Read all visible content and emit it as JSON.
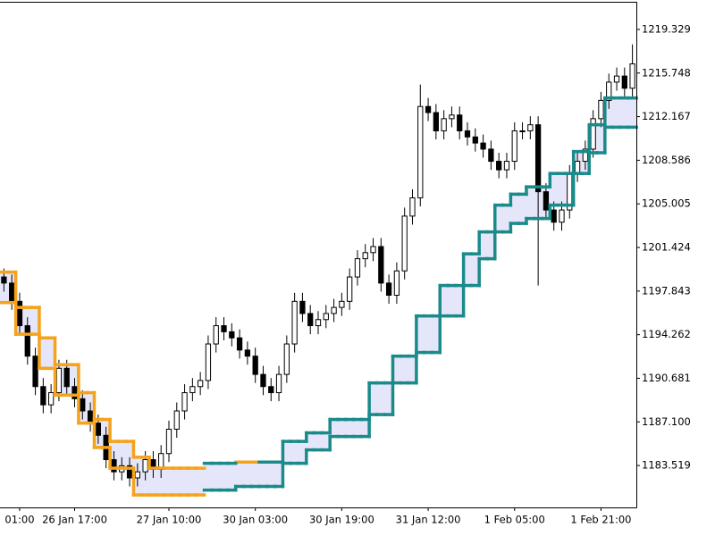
{
  "chart_data": {
    "type": "candlestick",
    "categories": [
      null,
      null,
      "01:00",
      null,
      null,
      null,
      null,
      null,
      null,
      "26 Jan 17:00",
      null,
      null,
      null,
      null,
      null,
      null,
      null,
      null,
      null,
      null,
      null,
      "27 Jan 10:00",
      null,
      null,
      null,
      null,
      null,
      null,
      null,
      null,
      null,
      null,
      "30 Jan 03:00",
      null,
      null,
      null,
      null,
      null,
      null,
      null,
      null,
      null,
      null,
      "30 Jan 19:00",
      null,
      null,
      null,
      null,
      null,
      null,
      null,
      null,
      null,
      null,
      "31 Jan 12:00",
      null,
      null,
      null,
      null,
      null,
      null,
      null,
      null,
      null,
      null,
      "1 Feb 05:00",
      null,
      null,
      null,
      null,
      null,
      null,
      null,
      null,
      null,
      null,
      "1 Feb 21:00",
      null,
      null,
      null,
      null
    ],
    "open": [
      1199,
      1198.5,
      1197,
      1195,
      1192.5,
      1190,
      1188.5,
      1189.5,
      1191.5,
      1190,
      1189,
      1188,
      1187,
      1186,
      1184,
      1183,
      1183.5,
      1182.5,
      1183,
      1184,
      1183.2,
      1184.5,
      1186.5,
      1188,
      1189.5,
      1190,
      1190.5,
      1193.5,
      1195,
      1194.5,
      1194,
      1193,
      1192.5,
      1191,
      1190,
      1189.5,
      1191,
      1193.5,
      1197,
      1196,
      1195,
      1195.5,
      1196,
      1196.5,
      1197,
      1199,
      1200.5,
      1201,
      1201.5,
      1198.5,
      1197.5,
      1199.5,
      1204,
      1205.5,
      1213,
      1212.5,
      1211,
      1212,
      1212.3,
      1211,
      1210.5,
      1210,
      1209.5,
      1208.5,
      1207.8,
      1208.5,
      1211,
      1211,
      1211.5,
      1206,
      1204.5,
      1203.5,
      1204.5,
      1207.5,
      1208.5,
      1209.5,
      1212,
      1213.5,
      1215,
      1215.5,
      1214.5
    ],
    "high": [
      1199.7,
      1199.2,
      1197.7,
      1195.7,
      1193.2,
      1190.7,
      1190.2,
      1192.2,
      1192.2,
      1190.7,
      1189.7,
      1188.7,
      1187.7,
      1186.7,
      1184.7,
      1184.2,
      1184.2,
      1183.7,
      1184.7,
      1184.7,
      1185.2,
      1187.2,
      1188.7,
      1190.2,
      1190.7,
      1191.2,
      1194.2,
      1195.7,
      1195.7,
      1195.2,
      1194.7,
      1193.7,
      1193.2,
      1191.7,
      1190.7,
      1191.7,
      1194.2,
      1197.7,
      1197.7,
      1196.7,
      1196.2,
      1196.7,
      1197.2,
      1197.7,
      1199.7,
      1201.2,
      1201.7,
      1202.2,
      1202.2,
      1199.2,
      1200.2,
      1204.7,
      1206.2,
      1214.8,
      1213.7,
      1213.2,
      1212.7,
      1213,
      1213,
      1211.7,
      1211.2,
      1210.7,
      1210.2,
      1209.2,
      1209.2,
      1211.7,
      1211.7,
      1212.2,
      1212.2,
      1206.7,
      1205.2,
      1205.2,
      1208.2,
      1209.2,
      1210.2,
      1212.7,
      1214.2,
      1215.7,
      1216.2,
      1216.2,
      1218.1
    ],
    "low": [
      1197.8,
      1196.3,
      1194.3,
      1191.8,
      1189.3,
      1187.8,
      1187.8,
      1188.8,
      1189.3,
      1188.3,
      1187.3,
      1186.3,
      1185.3,
      1183.3,
      1182.3,
      1182.3,
      1181.8,
      1181.8,
      1182.3,
      1182.5,
      1182.5,
      1183.8,
      1185.8,
      1187.3,
      1188.8,
      1189.3,
      1189.8,
      1192.8,
      1193.8,
      1193.3,
      1192.3,
      1191.8,
      1190.3,
      1189.3,
      1188.8,
      1188.8,
      1190.3,
      1192.8,
      1195.3,
      1194.3,
      1194.3,
      1194.8,
      1195.3,
      1195.8,
      1196.3,
      1198.3,
      1199.8,
      1200.3,
      1197.8,
      1196.8,
      1196.8,
      1198.8,
      1203.3,
      1204.8,
      1211.8,
      1210.3,
      1210.3,
      1211.3,
      1210.3,
      1209.8,
      1209.3,
      1208.8,
      1207.8,
      1207.1,
      1207.1,
      1207.8,
      1210.3,
      1210.3,
      1198.3,
      1203.8,
      1202.8,
      1202.8,
      1203.8,
      1206.8,
      1207.8,
      1208.8,
      1211.3,
      1212.8,
      1214.3,
      1213.8,
      1213.8
    ],
    "close": [
      1198.5,
      1197,
      1195,
      1192.5,
      1190,
      1188.5,
      1189.5,
      1191.5,
      1190,
      1189,
      1188,
      1187,
      1186,
      1184,
      1183,
      1183.5,
      1182.5,
      1183,
      1184,
      1183.2,
      1184.5,
      1186.5,
      1188,
      1189.5,
      1190,
      1190.5,
      1193.5,
      1195,
      1194.5,
      1194,
      1193,
      1192.5,
      1191,
      1190,
      1189.5,
      1191,
      1193.5,
      1197,
      1196,
      1195,
      1195.5,
      1196,
      1196.5,
      1197,
      1199,
      1200.5,
      1201,
      1201.5,
      1198.5,
      1197.5,
      1199.5,
      1204,
      1205.5,
      1213,
      1212.5,
      1211,
      1212,
      1212.3,
      1211,
      1210.5,
      1210,
      1209.5,
      1208.5,
      1207.8,
      1208.5,
      1211,
      1211,
      1211.5,
      1206,
      1204.5,
      1203.5,
      1204.5,
      1207.5,
      1208.5,
      1209.5,
      1212,
      1213.5,
      1215,
      1215.5,
      1214.5,
      1216.5
    ],
    "up_color": "#ffffff",
    "down_color": "#000000",
    "fill_color": "#e6e6fa",
    "series": [
      {
        "color": "#f5a21c",
        "values": [
          1199.4,
          1199.4,
          1196.5,
          1196.5,
          1196.5,
          1194.0,
          1194.0,
          1191.8,
          1191.8,
          1191.8,
          1189.5,
          1189.5,
          1187.3,
          1187.3,
          1185.5,
          1185.5,
          1185.5,
          1184.2,
          1184.2,
          1183.3,
          1183.3,
          1183.3,
          1183.3,
          1183.3,
          1183.3,
          1183.3,
          null,
          null,
          null,
          null,
          1183.8,
          1183.8,
          1183.8,
          null,
          null,
          null,
          null,
          null,
          null,
          null,
          null,
          null,
          null,
          null,
          null,
          null,
          null,
          null,
          null,
          null,
          null,
          null,
          null,
          null,
          null,
          null,
          null,
          null,
          null,
          null,
          null,
          null,
          null,
          null,
          null,
          null,
          null,
          null,
          null,
          null,
          null,
          null,
          null,
          null,
          null,
          null,
          null,
          null,
          null,
          null,
          null
        ]
      },
      {
        "color": "#f5a21c",
        "values": [
          1196.9,
          1196.9,
          1194.3,
          1194.3,
          1194.3,
          1191.5,
          1191.5,
          1189.3,
          1189.3,
          1189.3,
          1187.0,
          1187.0,
          1185.0,
          1185.0,
          1183.3,
          1183.3,
          1183.3,
          1181.1,
          1181.1,
          1181.1,
          1181.1,
          1181.1,
          1181.1,
          1181.1,
          1181.1,
          1181.1,
          null,
          null,
          null,
          null,
          null,
          null,
          null,
          null,
          null,
          null,
          null,
          null,
          null,
          null,
          null,
          null,
          null,
          null,
          null,
          null,
          null,
          null,
          null,
          null,
          null,
          null,
          null,
          null,
          null,
          null,
          null,
          null,
          null,
          null,
          null,
          null,
          null,
          null,
          null,
          null,
          null,
          null,
          null,
          null,
          null,
          null,
          null,
          null,
          null,
          null,
          null,
          null,
          null,
          null,
          null
        ]
      },
      {
        "color": "#1a8a8a",
        "values": [
          null,
          null,
          null,
          null,
          null,
          null,
          null,
          null,
          null,
          null,
          null,
          null,
          null,
          null,
          null,
          null,
          null,
          null,
          null,
          null,
          null,
          null,
          null,
          null,
          null,
          null,
          1183.7,
          1183.7,
          1183.7,
          1183.7,
          null,
          null,
          null,
          1183.8,
          1183.8,
          1183.8,
          1185.5,
          1185.5,
          1185.5,
          1186.2,
          1186.2,
          1186.2,
          1187.3,
          1187.3,
          1187.3,
          1187.3,
          1187.3,
          1190.3,
          1190.3,
          1190.3,
          1192.5,
          1192.5,
          1192.5,
          1195.8,
          1195.8,
          1195.8,
          1198.3,
          1198.3,
          1198.3,
          1200.9,
          1200.9,
          1202.7,
          1202.7,
          1204.9,
          1204.9,
          1205.8,
          1205.8,
          1206.4,
          1206.4,
          1206.4,
          1207.5,
          1207.5,
          1207.5,
          1209.3,
          1209.3,
          1211.5,
          1211.5,
          1213.7,
          1213.7,
          1213.7,
          1213.7
        ]
      },
      {
        "color": "#1a8a8a",
        "values": [
          null,
          null,
          null,
          null,
          null,
          null,
          null,
          null,
          null,
          null,
          null,
          null,
          null,
          null,
          null,
          null,
          null,
          null,
          null,
          null,
          null,
          null,
          null,
          null,
          null,
          null,
          1181.5,
          1181.5,
          1181.5,
          1181.5,
          1181.8,
          1181.8,
          1181.8,
          1181.8,
          1181.8,
          1181.8,
          1183.7,
          1183.7,
          1183.7,
          1184.8,
          1184.8,
          1184.8,
          1185.9,
          1185.9,
          1185.9,
          1185.9,
          1185.9,
          1187.7,
          1187.7,
          1187.7,
          1190.3,
          1190.3,
          1190.3,
          1192.8,
          1192.8,
          1192.8,
          1195.8,
          1195.8,
          1195.8,
          1198.3,
          1198.3,
          1200.5,
          1200.5,
          1202.7,
          1202.7,
          1203.4,
          1203.4,
          1203.8,
          1203.8,
          1203.8,
          1204.9,
          1204.9,
          1204.9,
          1207.5,
          1207.5,
          1209.2,
          1209.2,
          1211.3,
          1211.3,
          1211.3,
          1211.3
        ]
      }
    ],
    "ylim": [
      1180.078,
      1221.745
    ],
    "yticks": [
      {
        "value": 1183.519,
        "label": "1183.519"
      },
      {
        "value": 1187.1,
        "label": "1187.100"
      },
      1190.681,
      1194.262,
      1197.843,
      1201.424,
      1205.005,
      1208.586,
      1212.167,
      1215.748,
      1219.329
    ]
  }
}
